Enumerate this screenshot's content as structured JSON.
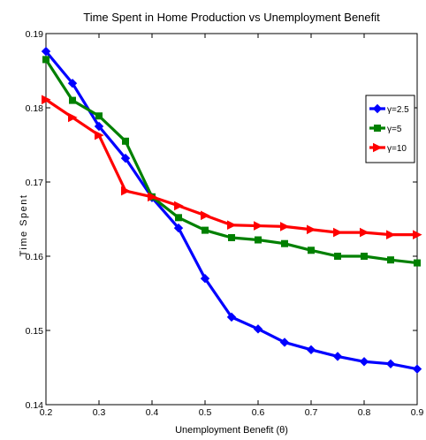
{
  "chart_data": {
    "type": "line",
    "title": "Time Spent in Home Production vs Unemployment Benefit",
    "xlabel": "Unemployment Benefit (θ)",
    "ylabel": "Time Spent",
    "xlim": [
      0.2,
      0.9
    ],
    "ylim": [
      0.14,
      0.19
    ],
    "x_ticks": [
      "0.2",
      "0.3",
      "0.4",
      "0.5",
      "0.6",
      "0.7",
      "0.8",
      "0.9"
    ],
    "y_ticks": [
      "0.14",
      "0.15",
      "0.16",
      "0.17",
      "0.18",
      "0.19"
    ],
    "grid": false,
    "legend_position": "top-right",
    "x": [
      0.2,
      0.25,
      0.3,
      0.35,
      0.4,
      0.45,
      0.5,
      0.55,
      0.6,
      0.65,
      0.7,
      0.75,
      0.8,
      0.85,
      0.9
    ],
    "series": [
      {
        "name": "γ=2.5",
        "color": "#0000ff",
        "marker": "diamond",
        "values": [
          0.1876,
          0.1833,
          0.1775,
          0.1732,
          0.1679,
          0.1638,
          0.157,
          0.1518,
          0.1502,
          0.1484,
          0.1474,
          0.1465,
          0.1458,
          0.1455,
          0.1448
        ]
      },
      {
        "name": "γ=5",
        "color": "#008000",
        "marker": "square",
        "values": [
          0.1865,
          0.181,
          0.1789,
          0.1755,
          0.168,
          0.1652,
          0.1635,
          0.1625,
          0.1622,
          0.1617,
          0.1608,
          0.16,
          0.16,
          0.1595,
          0.1591
        ]
      },
      {
        "name": "γ=10",
        "color": "#ff0000",
        "marker": "triangle-right",
        "values": [
          0.1811,
          0.1787,
          0.1763,
          0.1688,
          0.168,
          0.1668,
          0.1655,
          0.1642,
          0.1641,
          0.164,
          0.1636,
          0.1632,
          0.1632,
          0.1629,
          0.1629
        ]
      }
    ]
  }
}
